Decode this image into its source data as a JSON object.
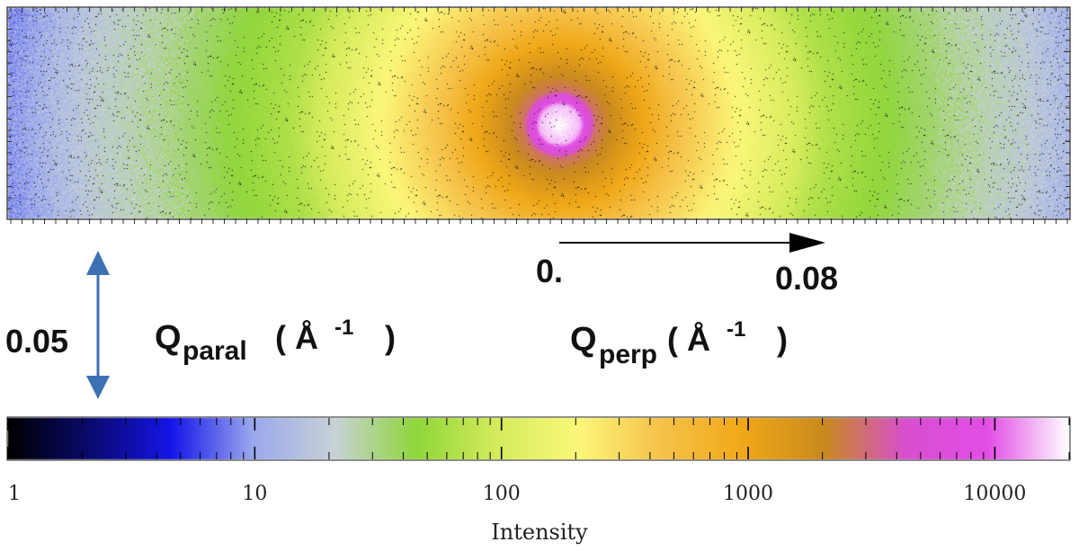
{
  "figure": {
    "colors": {
      "colormap": [
        "#000000",
        "#0a0a6e",
        "#1515e8",
        "#9aa8ee",
        "#c8d2d6",
        "#8fd63a",
        "#d6ec5c",
        "#fbf77a",
        "#f6c24a",
        "#f0a818",
        "#c98a1e",
        "#d84fd0",
        "#e24ee6",
        "#ffffff"
      ],
      "background": "#ffffff",
      "arrow_perp": "#000000",
      "arrow_paral": "#3c72b4"
    },
    "qperp_scale": {
      "start_label": "0.",
      "end_label": "0.08",
      "symbol": "Q",
      "subscript": "perp",
      "unit_open": "( Å",
      "unit_exp": "-1",
      "unit_close": ")"
    },
    "qparal_scale": {
      "value_label": "0.05",
      "symbol": "Q",
      "subscript": "paral",
      "unit_open": "( Å",
      "unit_exp": "-1",
      "unit_close": ")"
    },
    "colorbar": {
      "ticks": [
        "1",
        "10",
        "100",
        "1000",
        "10000"
      ],
      "label": "Intensity",
      "scale": "log",
      "range": [
        1,
        20000
      ]
    }
  }
}
